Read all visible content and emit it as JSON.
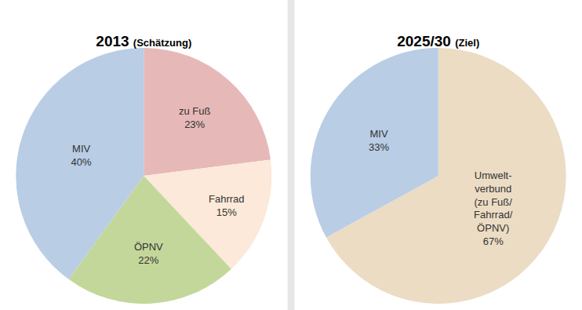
{
  "chart_data": [
    {
      "type": "pie",
      "title": "2013 (Schätzung)",
      "categories": [
        "zu Fuß",
        "Fahrrad",
        "ÖPNV",
        "MIV"
      ],
      "values": [
        23,
        15,
        22,
        40
      ],
      "value_labels": [
        "23%",
        "15%",
        "22%",
        "40%"
      ],
      "colors": [
        "#e6b9b8",
        "#fde9d9",
        "#c4d79b",
        "#b9cde5"
      ],
      "data_labels": true
    },
    {
      "type": "pie",
      "title": "2025/30 (Ziel)",
      "categories": [
        "Umwelt-\nverbund\n(zu Fuß/\nFahrrad/\nÖPNV)",
        "MIV"
      ],
      "values": [
        67,
        33
      ],
      "value_labels": [
        "67%",
        "33%"
      ],
      "colors": [
        "#ecdcc4",
        "#b9cde5"
      ],
      "data_labels": true
    }
  ]
}
